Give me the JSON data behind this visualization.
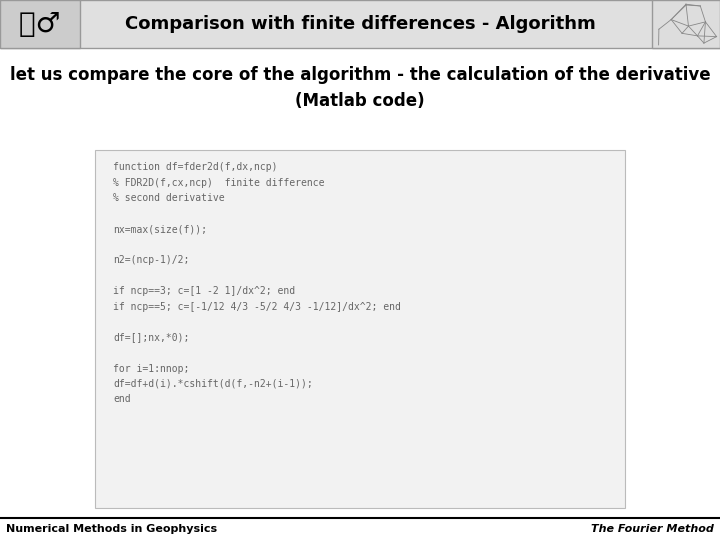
{
  "title": "Comparison with finite differences - Algorithm",
  "subtitle": "let us compare the core of the algorithm - the calculation of the derivative\n(Matlab code)",
  "footer_left": "Numerical Methods in Geophysics",
  "footer_right": "The Fourier Method",
  "code_lines": [
    "function df=fder2d(f,dx,ncp)",
    "% FDR2D(f,cx,ncp)  finite difference",
    "% second derivative",
    "",
    "nx=max(size(f));",
    "",
    "n2=(ncp-1)/2;",
    "",
    "if ncp==3; c=[1 -2 1]/dx^2; end",
    "if ncp==5; c=[-1/12 4/3 -5/2 4/3 -1/12]/dx^2; end",
    "",
    "df=[];nx,*0);",
    "",
    "for i=1:nnop;",
    "df=df+d(i).*cshift(d(f,-n2+(i-1));",
    "end"
  ],
  "bg_color": "#ffffff",
  "header_bg": "#e0e0e0",
  "header_border": "#999999",
  "code_color": "#666666",
  "subtitle_color": "#000000",
  "title_color": "#000000",
  "footer_border": "#000000",
  "left_logo_bg": "#cccccc",
  "right_logo_bg": "#dddddd"
}
